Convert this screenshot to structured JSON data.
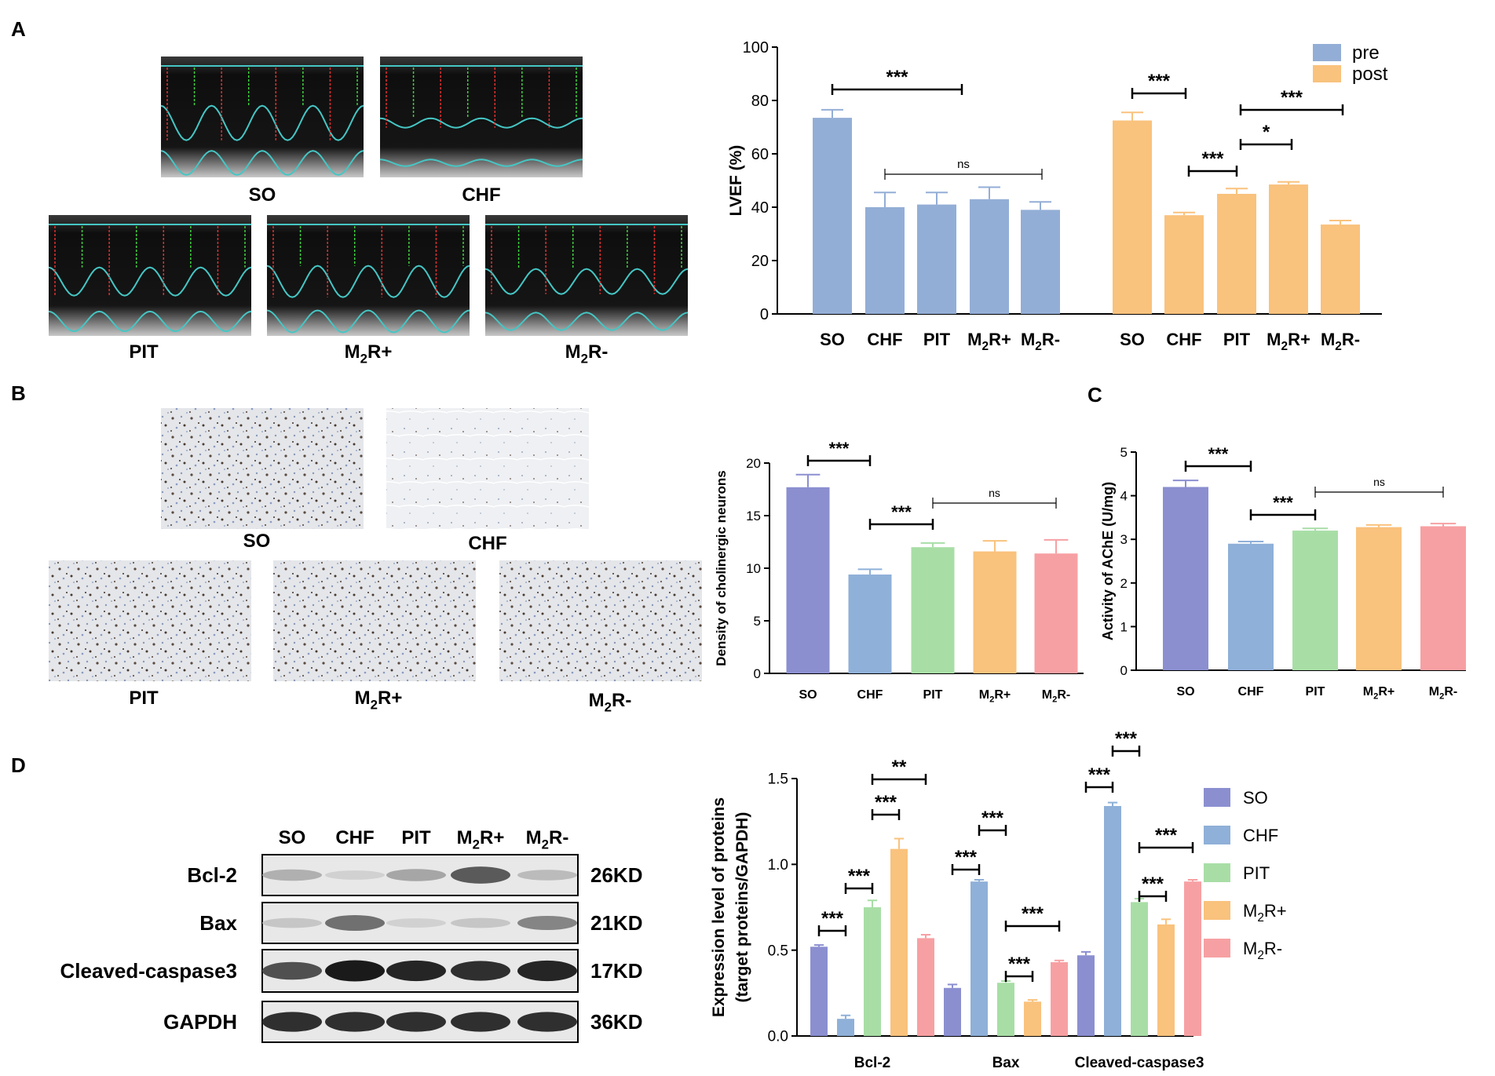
{
  "panels": {
    "A": "A",
    "B": "B",
    "C": "C",
    "D": "D"
  },
  "echo_labels": [
    "SO",
    "CHF",
    "PIT",
    "M2R+",
    "M2R-"
  ],
  "ihc_labels": [
    "SO",
    "CHF",
    "PIT",
    "M2R+",
    "M2R-"
  ],
  "western": {
    "lanes": [
      "SO",
      "CHF",
      "PIT",
      "M2R+",
      "M2R-"
    ],
    "rows": [
      {
        "name": "Bcl-2",
        "size": "26KD"
      },
      {
        "name": "Bax",
        "size": "21KD"
      },
      {
        "name": "Cleaved-caspase3",
        "size": "17KD"
      },
      {
        "name": "GAPDH",
        "size": "36KD"
      }
    ]
  },
  "colors": {
    "pre": "#93aed6",
    "post": "#f9c27d",
    "SO": "#8b8fd0",
    "CHF": "#8fb0d8",
    "PIT": "#a8dea6",
    "M2R+": "#f9c27d",
    "M2R-": "#f7a0a3",
    "echo_trace": "#45c6c4",
    "echo_red": "#e03030",
    "echo_green": "#40d040"
  },
  "chart_data": [
    {
      "id": "lvef",
      "type": "bar",
      "ylabel": "LVEF (%)",
      "ylim": [
        0,
        100
      ],
      "yticks": [
        0,
        20,
        40,
        60,
        80,
        100
      ],
      "categories": [
        "SO",
        "CHF",
        "PIT",
        "M2R+",
        "M2R-"
      ],
      "legend": [
        "pre",
        "post"
      ],
      "legend_position": "top-right",
      "series": [
        {
          "name": "pre",
          "values": [
            73.5,
            40,
            41,
            43,
            39
          ],
          "errors": [
            3,
            5.5,
            4.5,
            4.5,
            3
          ]
        },
        {
          "name": "post",
          "values": [
            72.5,
            37,
            45,
            48.5,
            33.5
          ],
          "errors": [
            3,
            1,
            2,
            1,
            1.5
          ]
        }
      ],
      "significance": [
        "***",
        "ns",
        "***",
        "***",
        "*",
        "***"
      ]
    },
    {
      "id": "density",
      "type": "bar",
      "ylabel": "Density of cholinergic neurons",
      "ylim": [
        0,
        20
      ],
      "yticks": [
        0,
        5,
        10,
        15,
        20
      ],
      "categories": [
        "SO",
        "CHF",
        "PIT",
        "M2R+",
        "M2R-"
      ],
      "values": [
        17.7,
        9.4,
        12,
        11.6,
        11.4
      ],
      "errors": [
        1.2,
        0.5,
        0.4,
        1,
        1.3
      ],
      "significance": [
        "***",
        "***",
        "ns"
      ]
    },
    {
      "id": "ache",
      "type": "bar",
      "ylabel": "Activity of AChE (U/mg)",
      "ylim": [
        0,
        5
      ],
      "yticks": [
        0,
        1,
        2,
        3,
        4,
        5
      ],
      "categories": [
        "SO",
        "CHF",
        "PIT",
        "M2R+",
        "M2R-"
      ],
      "values": [
        4.2,
        2.9,
        3.2,
        3.28,
        3.3
      ],
      "errors": [
        0.15,
        0.05,
        0.05,
        0.05,
        0.06
      ],
      "significance": [
        "***",
        "***",
        "ns"
      ]
    },
    {
      "id": "expression",
      "type": "bar",
      "ylabel": "Expression level of proteins",
      "ylabel2": "(target proteins/GAPDH)",
      "ylim": [
        0,
        1.5
      ],
      "yticks": [
        0.0,
        0.5,
        1.0,
        1.5
      ],
      "categories": [
        "Bcl-2",
        "Bax",
        "Cleaved-caspase3"
      ],
      "legend": [
        "SO",
        "CHF",
        "PIT",
        "M2R+",
        "M2R-"
      ],
      "legend_position": "right",
      "series": [
        {
          "name": "SO",
          "values": [
            0.52,
            0.28,
            0.47
          ],
          "errors": [
            0.01,
            0.02,
            0.02
          ]
        },
        {
          "name": "CHF",
          "values": [
            0.1,
            0.9,
            1.34
          ],
          "errors": [
            0.02,
            0.01,
            0.02
          ]
        },
        {
          "name": "PIT",
          "values": [
            0.75,
            0.31,
            0.78
          ],
          "errors": [
            0.04,
            0.01,
            0.02
          ]
        },
        {
          "name": "M2R+",
          "values": [
            1.09,
            0.2,
            0.65
          ],
          "errors": [
            0.06,
            0.01,
            0.03
          ]
        },
        {
          "name": "M2R-",
          "values": [
            0.57,
            0.43,
            0.9
          ],
          "errors": [
            0.02,
            0.01,
            0.01
          ]
        }
      ],
      "significance": [
        "***",
        "***",
        "***",
        "**",
        "***",
        "***",
        "***",
        "***",
        "***",
        "***",
        "***",
        "***"
      ]
    }
  ]
}
